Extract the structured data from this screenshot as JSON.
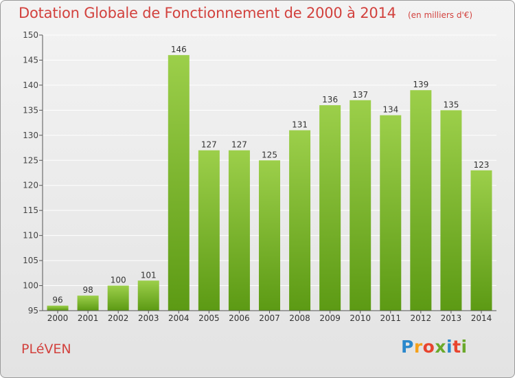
{
  "header": {
    "title": "Dotation Globale de Fonctionnement de 2000 à 2014",
    "subtitle": "(en milliers d'€)"
  },
  "footer": {
    "commune": "PLéVEN",
    "logo_letters": [
      "P",
      "r",
      "o",
      "x",
      "i",
      "t",
      "i"
    ],
    "logo_colors": [
      "#2a88cc",
      "#f5a11b",
      "#e8442e",
      "#6aa92a",
      "#2a88cc",
      "#e8442e",
      "#6aa92a"
    ]
  },
  "colors": {
    "bar_top": "#9ccf4a",
    "bar_bottom": "#5c9a14",
    "title": "#d2413d",
    "grid": "#ffffff"
  },
  "chart_data": {
    "type": "bar",
    "title": "Dotation Globale de Fonctionnement de 2000 à 2014",
    "subtitle": "(en milliers d'€)",
    "categories": [
      "2000",
      "2001",
      "2002",
      "2003",
      "2004",
      "2005",
      "2006",
      "2007",
      "2008",
      "2009",
      "2010",
      "2011",
      "2012",
      "2013",
      "2014"
    ],
    "values": [
      96,
      98,
      100,
      101,
      146,
      127,
      127,
      125,
      131,
      136,
      137,
      134,
      139,
      135,
      123
    ],
    "ylim": [
      95,
      150
    ],
    "yticks": [
      95,
      100,
      105,
      110,
      115,
      120,
      125,
      130,
      135,
      140,
      145,
      150
    ],
    "grid": true,
    "data_labels": true
  }
}
